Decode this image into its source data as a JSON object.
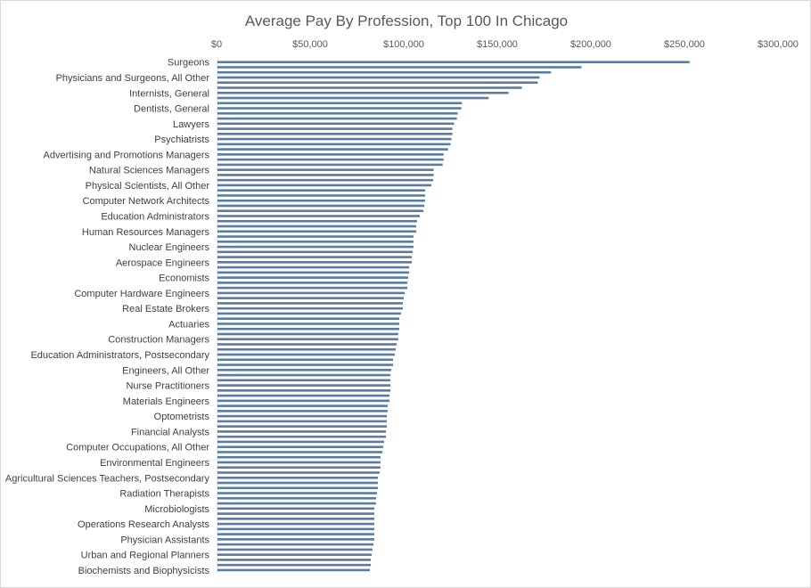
{
  "chart_data": {
    "type": "bar",
    "orientation": "horizontal",
    "title": "Average Pay By Profession, Top 100 In Chicago",
    "xlabel": "",
    "ylabel": "",
    "xlim": [
      0,
      300000
    ],
    "x_ticks": [
      0,
      50000,
      100000,
      150000,
      200000,
      250000,
      300000
    ],
    "x_tick_labels": [
      "$0",
      "$50,000",
      "$100,000",
      "$150,000",
      "$200,000",
      "$250,000",
      "$300,000"
    ],
    "x_axis_position": "top",
    "grid": false,
    "legend": "none",
    "bar_color": "#5b7ba1",
    "category_label_every": 3,
    "category_labels": [
      "Surgeons",
      "Physicians and Surgeons, All Other",
      "Internists, General",
      "Dentists, General",
      "Lawyers",
      "Psychiatrists",
      "Advertising and Promotions Managers",
      "Natural Sciences Managers",
      "Physical Scientists, All Other",
      "Computer Network Architects",
      "Education Administrators",
      "Human Resources Managers",
      "Nuclear Engineers",
      "Aerospace Engineers",
      "Economists",
      "Computer Hardware Engineers",
      "Real Estate Brokers",
      "Actuaries",
      "Construction Managers",
      "Education Administrators, Postsecondary",
      "Engineers, All Other",
      "Nurse Practitioners",
      "Materials Engineers",
      "Optometrists",
      "Financial Analysts",
      "Computer Occupations, All Other",
      "Environmental Engineers",
      "Agricultural Sciences Teachers, Postsecondary",
      "Radiation Therapists",
      "Microbiologists",
      "Operations Research Analysts",
      "Physician Assistants",
      "Urban and Regional Planners",
      "Biochemists and Biophysicists"
    ],
    "values": [
      252700,
      195000,
      178700,
      172600,
      171600,
      163100,
      156000,
      145400,
      131100,
      130800,
      128800,
      128400,
      126900,
      126000,
      126000,
      125500,
      125000,
      123700,
      121300,
      121300,
      120800,
      116000,
      116000,
      115700,
      114800,
      111400,
      111400,
      111400,
      111000,
      110500,
      108600,
      107100,
      106700,
      106700,
      105200,
      105200,
      105200,
      104800,
      104300,
      104300,
      102900,
      102900,
      102400,
      101900,
      101900,
      100500,
      100000,
      99500,
      99500,
      98600,
      97600,
      97600,
      97600,
      97100,
      97100,
      96200,
      95700,
      95200,
      94300,
      94300,
      93300,
      92900,
      92900,
      92900,
      92900,
      92400,
      92400,
      91400,
      91400,
      91000,
      91000,
      91000,
      90500,
      90500,
      89500,
      89000,
      88600,
      87600,
      87600,
      87600,
      87100,
      86200,
      86200,
      86200,
      85700,
      85200,
      85200,
      84300,
      84300,
      84300,
      84300,
      84300,
      84300,
      84300,
      83800,
      83300,
      82900,
      82400,
      82400,
      81900
    ]
  }
}
